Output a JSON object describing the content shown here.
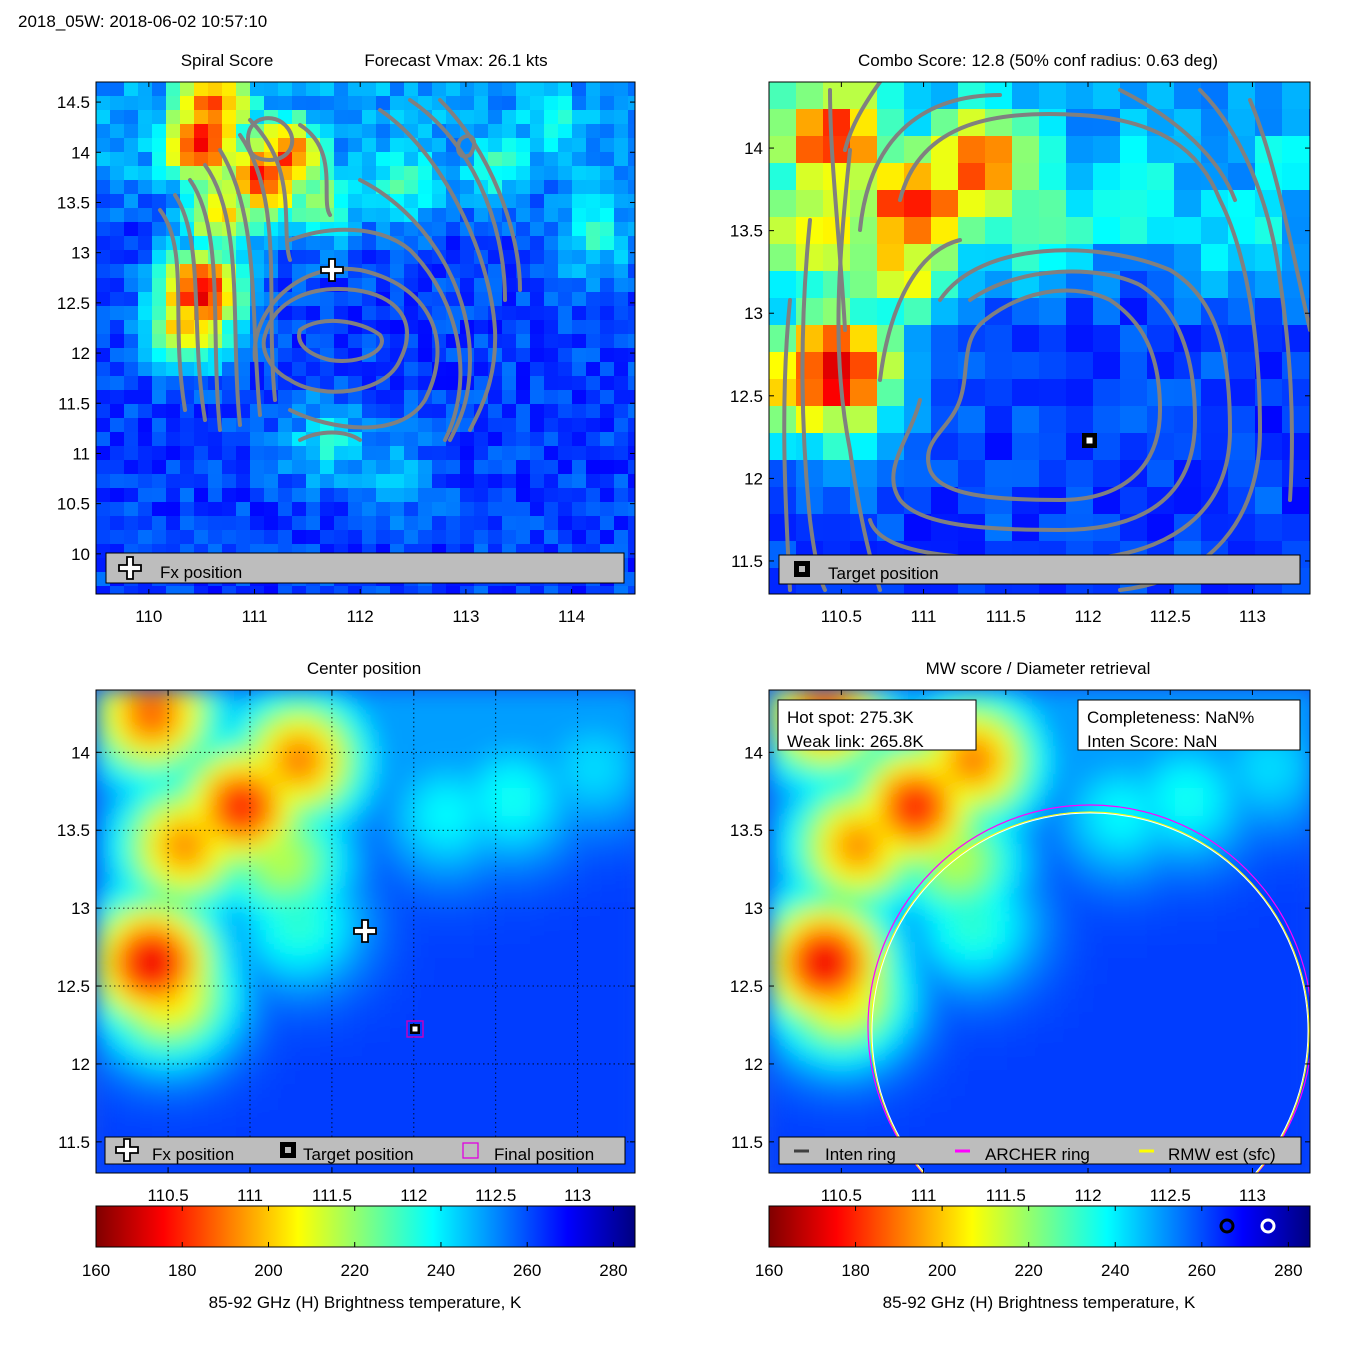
{
  "header": {
    "title": "2018_05W: 2018-06-02 10:57:10"
  },
  "colors": {
    "contour": "#808080",
    "legend_bg": "#bdbdbd",
    "archer_ring": "#ff00ff",
    "rmw_ring": "#ffff00",
    "inten_ring": "#404040"
  },
  "icons": {
    "fx_position": "plus-marker-icon",
    "target_position": "square-marker-icon",
    "final_position": "magenta-square-icon",
    "hot_spot": "black-ring-icon",
    "weak_link": "white-ring-icon"
  },
  "colormap": {
    "name": "jet-reversed",
    "vmin": 160,
    "vmax": 285
  },
  "panels": {
    "spiral": {
      "title_left": "Spiral Score",
      "title_right": "Forecast Vmax: 26.1 kts",
      "xticks": [
        "110",
        "111",
        "112",
        "113",
        "114"
      ],
      "yticks": [
        "14.5",
        "14",
        "13.5",
        "13",
        "12.5",
        "12",
        "11.5",
        "11",
        "10.5",
        "10"
      ],
      "legend": {
        "fx_label": "Fx position"
      }
    },
    "combo": {
      "title": "Combo Score: 12.8  (50% conf radius: 0.63 deg)",
      "xticks": [
        "110.5",
        "111",
        "111.5",
        "112",
        "112.5",
        "113"
      ],
      "yticks": [
        "14",
        "13.5",
        "13",
        "12.5",
        "12",
        "11.5"
      ],
      "legend": {
        "target_label": "Target position"
      }
    },
    "center": {
      "title": "Center position",
      "xticks": [
        "110.5",
        "111",
        "111.5",
        "112",
        "112.5",
        "113"
      ],
      "yticks": [
        "14",
        "13.5",
        "13",
        "12.5",
        "12",
        "11.5"
      ],
      "legend": {
        "fx_label": "Fx position",
        "target_label": "Target position",
        "final_label": "Final position"
      }
    },
    "mw": {
      "title": "MW score / Diameter retrieval",
      "xticks": [
        "110.5",
        "111",
        "111.5",
        "112",
        "112.5",
        "113"
      ],
      "yticks": [
        "14",
        "13.5",
        "13",
        "12.5",
        "12",
        "11.5"
      ],
      "hot_spot": "Hot spot: 275.3K",
      "weak_link": "Weak link: 265.8K",
      "completeness": "Completeness: NaN%",
      "inten_score": "Inten Score: NaN",
      "legend": {
        "inten_label": "Inten ring",
        "archer_label": "ARCHER ring",
        "rmw_label": "RMW est (sfc)"
      }
    }
  },
  "colorbars": {
    "ticks": [
      "160",
      "180",
      "200",
      "220",
      "240",
      "260",
      "280"
    ],
    "label": "85-92 GHz (H) Brightness temperature, K"
  },
  "chart_data": [
    {
      "type": "heatmap",
      "title": "Spiral Score",
      "subtitle": "Forecast Vmax: 26.1 kts",
      "xlim": [
        109.5,
        114.6
      ],
      "ylim": [
        9.6,
        14.7
      ],
      "fx_position": {
        "x": 111.7,
        "y": 12.8
      },
      "features": [
        {
          "x": 110.5,
          "y": 12.6,
          "tb": 172
        },
        {
          "x": 110.4,
          "y": 12.3,
          "tb": 195
        },
        {
          "x": 110.5,
          "y": 14.1,
          "tb": 176
        },
        {
          "x": 110.6,
          "y": 14.45,
          "tb": 186
        },
        {
          "x": 111.1,
          "y": 13.75,
          "tb": 178
        },
        {
          "x": 111.3,
          "y": 13.95,
          "tb": 186
        },
        {
          "x": 110.7,
          "y": 13.4,
          "tb": 202
        },
        {
          "x": 111.6,
          "y": 13.5,
          "tb": 222
        },
        {
          "x": 112.4,
          "y": 13.7,
          "tb": 230
        },
        {
          "x": 113.3,
          "y": 13.9,
          "tb": 232
        },
        {
          "x": 114.2,
          "y": 13.2,
          "tb": 234
        },
        {
          "x": 113.8,
          "y": 14.3,
          "tb": 236
        },
        {
          "x": 111.7,
          "y": 11.1,
          "tb": 238
        },
        {
          "x": 112.3,
          "y": 10.8,
          "tb": 248
        }
      ]
    },
    {
      "type": "heatmap",
      "title": "Combo Score: 12.8  (50% conf radius: 0.63 deg)",
      "xlim": [
        110.06,
        113.35
      ],
      "ylim": [
        11.3,
        14.4
      ],
      "target_position": {
        "x": 112.03,
        "y": 12.17
      },
      "features": [
        {
          "x": 110.45,
          "y": 12.65,
          "tb": 172
        },
        {
          "x": 110.3,
          "y": 12.6,
          "tb": 192
        },
        {
          "x": 110.45,
          "y": 14.05,
          "tb": 182
        },
        {
          "x": 110.35,
          "y": 13.5,
          "tb": 202
        },
        {
          "x": 110.95,
          "y": 13.65,
          "tb": 178
        },
        {
          "x": 111.35,
          "y": 13.9,
          "tb": 186
        },
        {
          "x": 110.85,
          "y": 13.3,
          "tb": 205
        },
        {
          "x": 111.7,
          "y": 13.55,
          "tb": 222
        },
        {
          "x": 112.3,
          "y": 13.7,
          "tb": 232
        },
        {
          "x": 112.9,
          "y": 13.5,
          "tb": 236
        },
        {
          "x": 113.2,
          "y": 13.9,
          "tb": 238
        }
      ]
    },
    {
      "type": "heatmap",
      "title": "Center position",
      "xlim": [
        110.06,
        113.35
      ],
      "ylim": [
        11.3,
        14.4
      ],
      "fx_position": {
        "x": 111.7,
        "y": 12.8
      },
      "target_position": {
        "x": 112.02,
        "y": 12.15
      },
      "final_position": {
        "x": 112.02,
        "y": 12.15
      },
      "features": [
        {
          "x": 110.4,
          "y": 12.65,
          "tb": 172
        },
        {
          "x": 110.5,
          "y": 12.45,
          "tb": 200
        },
        {
          "x": 110.4,
          "y": 14.25,
          "tb": 186
        },
        {
          "x": 110.6,
          "y": 13.4,
          "tb": 192
        },
        {
          "x": 110.95,
          "y": 13.65,
          "tb": 178
        },
        {
          "x": 111.3,
          "y": 13.95,
          "tb": 190
        },
        {
          "x": 111.2,
          "y": 13.3,
          "tb": 215
        },
        {
          "x": 111.3,
          "y": 12.9,
          "tb": 232
        },
        {
          "x": 112.2,
          "y": 13.6,
          "tb": 238
        },
        {
          "x": 112.6,
          "y": 13.7,
          "tb": 236
        },
        {
          "x": 113.1,
          "y": 13.9,
          "tb": 242
        }
      ]
    },
    {
      "type": "heatmap",
      "title": "MW score / Diameter retrieval",
      "xlim": [
        110.06,
        113.35
      ],
      "ylim": [
        11.3,
        14.4
      ],
      "ring_center": {
        "x": 112.03,
        "y": 12.17
      },
      "archer_ring_radius_deg": 1.33,
      "rmw_ring_radius_deg": 1.32,
      "features": [
        {
          "x": 110.4,
          "y": 12.65,
          "tb": 172
        },
        {
          "x": 110.5,
          "y": 12.45,
          "tb": 200
        },
        {
          "x": 110.4,
          "y": 14.25,
          "tb": 186
        },
        {
          "x": 110.6,
          "y": 13.4,
          "tb": 192
        },
        {
          "x": 110.95,
          "y": 13.65,
          "tb": 178
        },
        {
          "x": 111.3,
          "y": 13.95,
          "tb": 190
        },
        {
          "x": 111.2,
          "y": 13.3,
          "tb": 215
        },
        {
          "x": 111.3,
          "y": 12.9,
          "tb": 232
        },
        {
          "x": 112.2,
          "y": 13.6,
          "tb": 238
        },
        {
          "x": 112.6,
          "y": 13.7,
          "tb": 236
        },
        {
          "x": 113.1,
          "y": 13.9,
          "tb": 242
        }
      ],
      "hot_spot_tb": 275.3,
      "weak_link_tb": 265.8
    }
  ]
}
